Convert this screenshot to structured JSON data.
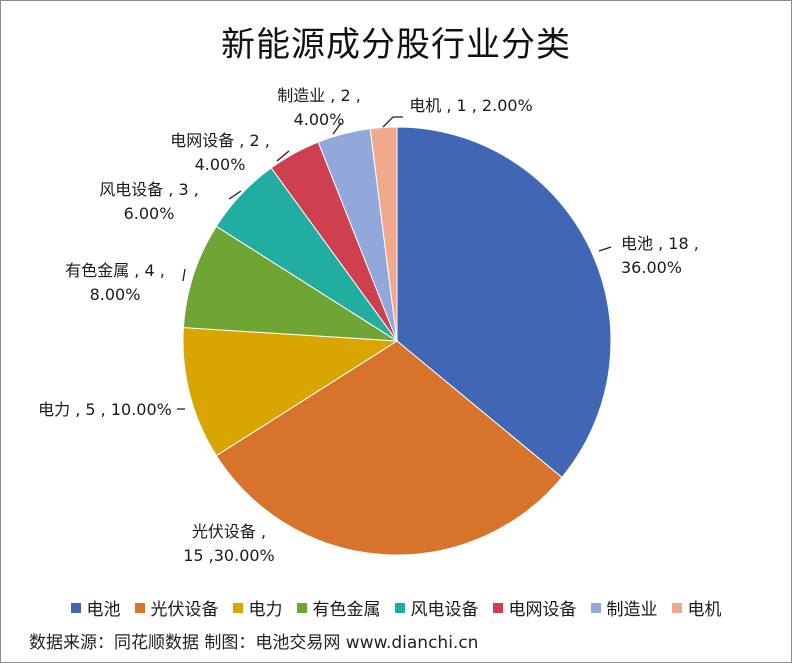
{
  "chart_data": {
    "type": "pie",
    "title": "新能源成分股行业分类",
    "slices": [
      {
        "name": "电池",
        "value": 18,
        "pct": "36.00%",
        "color": "#4066B5",
        "label_lines": [
          "电池 , 18 ,",
          "36.00%"
        ]
      },
      {
        "name": "光伏设备",
        "value": 15,
        "pct": "30.00%",
        "color": "#D7732A",
        "label_lines": [
          "光伏设备 ,",
          "15 ,30.00%"
        ]
      },
      {
        "name": "电力",
        "value": 5,
        "pct": "10.00%",
        "color": "#D9A500",
        "label_lines": [
          "电力 , 5 , 10.00%"
        ]
      },
      {
        "name": "有色金属",
        "value": 4,
        "pct": "8.00%",
        "color": "#6EA535",
        "label_lines": [
          "有色金属 , 4 ,",
          "8.00%"
        ]
      },
      {
        "name": "风电设备",
        "value": 3,
        "pct": "6.00%",
        "color": "#22ADA1",
        "label_lines": [
          "风电设备 , 3 ,",
          "6.00%"
        ]
      },
      {
        "name": "电网设备",
        "value": 2,
        "pct": "4.00%",
        "color": "#CE3F4F",
        "label_lines": [
          "电网设备 , 2 ,",
          "4.00%"
        ]
      },
      {
        "name": "制造业",
        "value": 2,
        "pct": "4.00%",
        "color": "#92A8DB",
        "label_lines": [
          "制造业 , 2 ,",
          "4.00%"
        ]
      },
      {
        "name": "电机",
        "value": 1,
        "pct": "2.00%",
        "color": "#F0A98C",
        "label_lines": [
          "电机 , 1 , 2.00%"
        ]
      }
    ],
    "legend_position": "bottom"
  },
  "source_text": "数据来源：同花顺数据  制图：电池交易网 www.dianchi.cn"
}
